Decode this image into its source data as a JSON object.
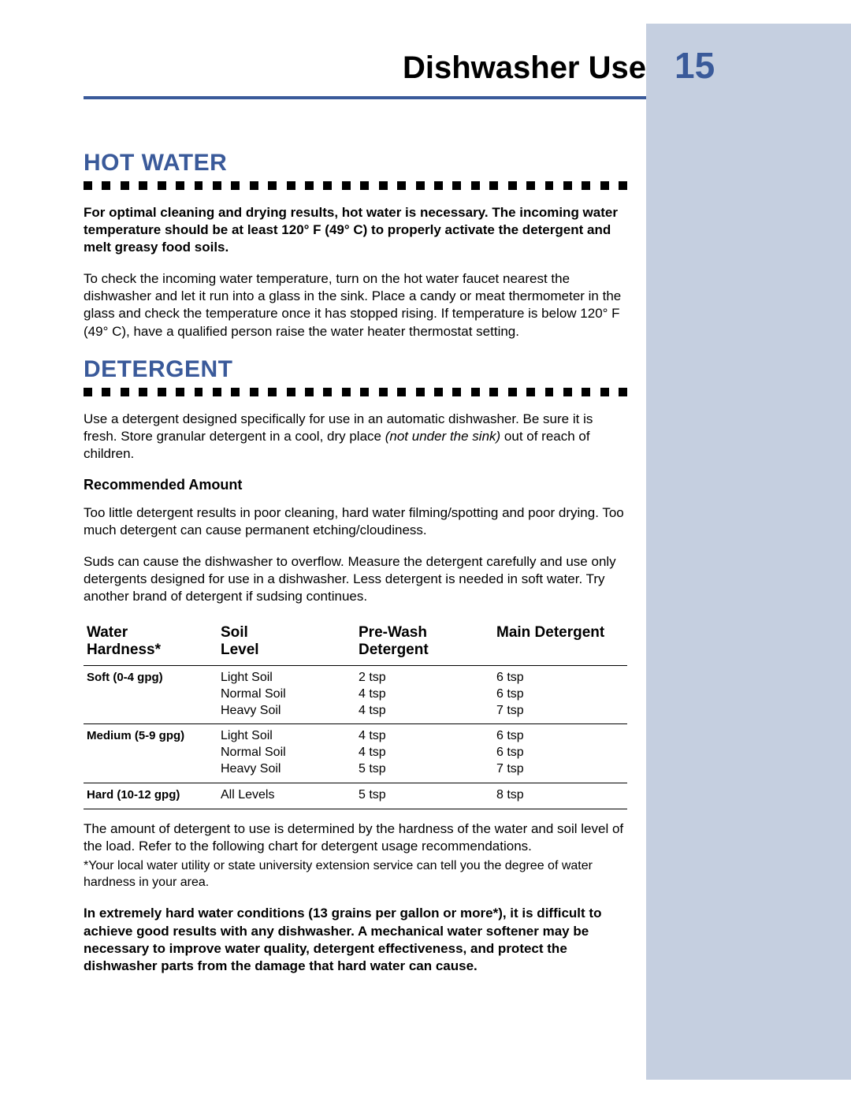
{
  "header": {
    "title": "Dishwasher Use",
    "page_number": "15",
    "title_color": "#000000",
    "page_number_color": "#3a5a9a",
    "rule_color": "#3a5a9a"
  },
  "sidebar": {
    "background_color": "#c5cfe0"
  },
  "sections": {
    "hot_water": {
      "heading": "HOT WATER",
      "bold_para": "For optimal cleaning and drying results, hot water is necessary. The incoming water temperature should be at least 120° F (49° C) to properly activate the detergent and melt greasy food soils.",
      "para": "To check the incoming water temperature, turn on the hot water faucet nearest the dishwasher and let it run into a glass in the sink. Place a candy or meat thermometer in the glass and check the temperature once it has stopped rising. If temperature is below 120° F (49° C), have a qualified person raise the water heater thermostat setting."
    },
    "detergent": {
      "heading": "DETERGENT",
      "intro_pre": "Use a detergent designed specifically for use in an automatic dishwasher. Be sure it is fresh. Store granular detergent in a cool, dry place ",
      "intro_italic": "(not under the sink)",
      "intro_post": " out of reach of children.",
      "sub_heading": "Recommended Amount",
      "para1": "Too little detergent results in poor cleaning, hard water filming/spotting and poor drying. Too much detergent can cause permanent etching/cloudiness.",
      "para2": "Suds can cause the dishwasher to overflow. Measure the detergent carefully and use only detergents designed for use in a dishwasher. Less detergent is needed in soft water. Try another brand of detergent if sudsing continues.",
      "after_table_para": "The amount of detergent to use is determined by the hardness of the water and soil level of the load. Refer to the following chart for detergent usage recommendations.",
      "footnote": "*Your local water utility or state university extension service can tell you the degree of water hardness in your area.",
      "closing_bold": "In extremely hard water conditions (13 grains per gallon or more*), it is difficult to achieve good results with any dishwasher.  A mechanical water softener may be necessary to improve water quality, detergent effectiveness, and protect the dishwasher parts from the damage that hard water can cause."
    }
  },
  "table": {
    "columns": [
      "Water Hardness*",
      "Soil Level",
      "Pre-Wash Detergent",
      "Main Detergent"
    ],
    "col_line1": [
      "Water",
      "Soil",
      "Pre-Wash",
      "Main Detergent"
    ],
    "col_line2": [
      "Hardness*",
      "Level",
      "Detergent",
      ""
    ],
    "rows": [
      {
        "hardness": "Soft (0-4 gpg)",
        "soil": [
          "Light Soil",
          "Normal Soil",
          "Heavy Soil"
        ],
        "prewash": [
          "2 tsp",
          "4 tsp",
          "4 tsp"
        ],
        "main": [
          "6 tsp",
          "6 tsp",
          "7 tsp"
        ]
      },
      {
        "hardness": "Medium (5-9 gpg)",
        "soil": [
          "Light Soil",
          "Normal Soil",
          "Heavy Soil"
        ],
        "prewash": [
          "4 tsp",
          "4 tsp",
          "5 tsp"
        ],
        "main": [
          "6 tsp",
          "6 tsp",
          "7 tsp"
        ]
      },
      {
        "hardness": "Hard (10-12 gpg)",
        "soil": [
          "All Levels"
        ],
        "prewash": [
          "5 tsp"
        ],
        "main": [
          "8 tsp"
        ]
      }
    ]
  },
  "style": {
    "heading_color": "#3a5a9a",
    "dot_color": "#000000",
    "dot_count": 30
  }
}
